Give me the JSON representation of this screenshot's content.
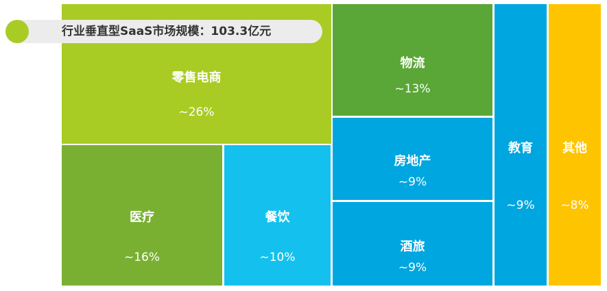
{
  "title": "行业垂直型SaaS市场规模：103.3亿元",
  "colors": {
    "lime": "#A9CC25",
    "green_mid": "#79B032",
    "green_dark": "#5AA737",
    "cyan": "#14C1EE",
    "blue": "#00A6E0",
    "yellow": "#FFC400",
    "title_bg": "#ECECEC",
    "title_dot": "#A9CC25"
  },
  "chart_data": {
    "type": "treemap",
    "title": "行业垂直型SaaS市场规模：103.3亿元",
    "items": [
      {
        "name": "零售电商",
        "label": "~26%",
        "value": 26,
        "color": "#A9CC25"
      },
      {
        "name": "医疗",
        "label": "~16%",
        "value": 16,
        "color": "#79B032"
      },
      {
        "name": "餐饮",
        "label": "~10%",
        "value": 10,
        "color": "#14C1EE"
      },
      {
        "name": "物流",
        "label": "~13%",
        "value": 13,
        "color": "#5AA737"
      },
      {
        "name": "房地产",
        "label": "~9%",
        "value": 9,
        "color": "#00A6E0"
      },
      {
        "name": "酒旅",
        "label": "~9%",
        "value": 9,
        "color": "#00A6E0"
      },
      {
        "name": "教育",
        "label": "~9%",
        "value": 9,
        "color": "#00A6E0"
      },
      {
        "name": "其他",
        "label": "~8%",
        "value": 8,
        "color": "#FFC400"
      }
    ]
  }
}
